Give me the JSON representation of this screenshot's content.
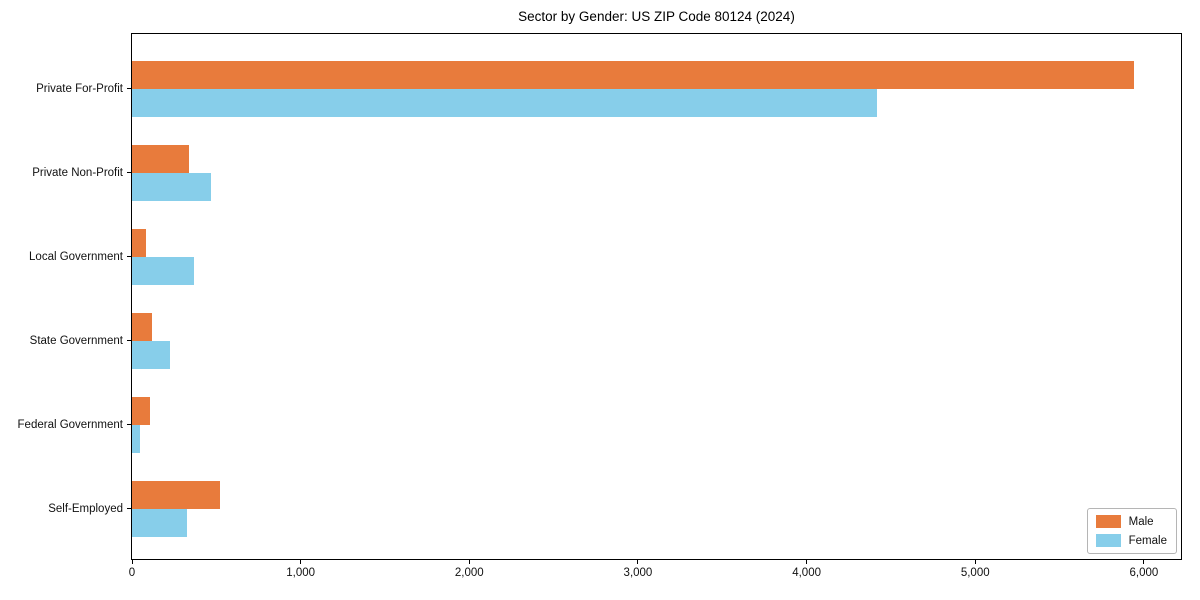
{
  "chart_data": {
    "type": "bar",
    "orientation": "horizontal",
    "title": "Sector by Gender: US ZIP Code 80124 (2024)",
    "categories": [
      "Private For-Profit",
      "Private Non-Profit",
      "Local Government",
      "State Government",
      "Federal Government",
      "Self-Employed"
    ],
    "series": [
      {
        "name": "Male",
        "color": "#e87b3c",
        "values": [
          5940,
          340,
          80,
          120,
          105,
          520
        ]
      },
      {
        "name": "Female",
        "color": "#87ceea",
        "values": [
          4420,
          470,
          365,
          225,
          45,
          325
        ]
      }
    ],
    "xlabel": "",
    "ylabel": "",
    "xlim": [
      0,
      6220
    ],
    "xticks": [
      0,
      1000,
      2000,
      3000,
      4000,
      5000,
      6000
    ],
    "xtick_labels": [
      "0",
      "1,000",
      "2,000",
      "3,000",
      "4,000",
      "5,000",
      "6,000"
    ],
    "grid": false,
    "background_color": "#ffffff",
    "spine_color": "#000000",
    "legend": {
      "position": "lower right",
      "entries": [
        "Male",
        "Female"
      ]
    }
  }
}
